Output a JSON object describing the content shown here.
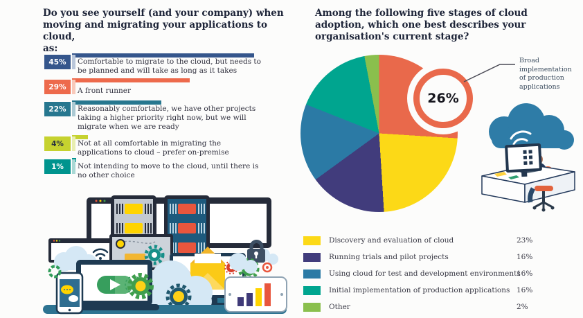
{
  "left": {
    "title_lines": [
      "Do you see yourself (and your company) when",
      "moving and migrating your applications to cloud,",
      "as:"
    ]
  },
  "right": {
    "title_lines": [
      "Among the following five stages of cloud",
      "adoption, which one best describes your",
      "organisation's current stage?"
    ],
    "badge_label": "26%",
    "callout_lines": [
      "Broad",
      "implementation",
      "of production",
      "applications"
    ]
  },
  "chart_data": [
    {
      "type": "bar",
      "orientation": "horizontal",
      "title": "Do you see yourself (and your company) when moving and migrating your applications to cloud, as:",
      "categories": [
        "Comfortable to migrate to the cloud, but needs to be planned and will take as long as it takes",
        "A front runner",
        "Reasonably comfortable, we have other projects taking a higher priority right now, but we will migrate when we are ready",
        "Not at all comfortable in migrating the applications to cloud – prefer on-premise",
        "Not intending to move to the cloud, until there is no other choice"
      ],
      "values": [
        45,
        29,
        22,
        4,
        1
      ],
      "value_labels": [
        "45%",
        "29%",
        "22%",
        "4%",
        "1%"
      ],
      "colors": [
        "#35568c",
        "#ed6a4c",
        "#27778f",
        "#c6d22f",
        "#00948e"
      ],
      "tint_colors": [
        "#b9c6da",
        "#f8c9ba",
        "#abc9d3",
        "#e8eeb0",
        "#a9d8d4"
      ],
      "value_text_colors": [
        "#ffffff",
        "#ffffff",
        "#ffffff",
        "#293241",
        "#ffffff"
      ],
      "xlim": [
        0,
        45
      ]
    },
    {
      "type": "pie",
      "title": "Among the following five stages of cloud adoption, which one best describes your organisation's current stage?",
      "start_angle_deg": 0,
      "direction": "clockwise",
      "segments": [
        {
          "label": "Broad implementation of production applications",
          "value": 26,
          "pct_label": "26%",
          "color": "#e9694b",
          "in_legend": false
        },
        {
          "label": "Discovery and evaluation of cloud",
          "value": 23,
          "pct_label": "23%",
          "color": "#fcd917",
          "in_legend": true
        },
        {
          "label": "Running trials and pilot projects",
          "value": 16,
          "pct_label": "16%",
          "color": "#413c7c",
          "in_legend": true
        },
        {
          "label": "Using cloud for test and development environments",
          "value": 16,
          "pct_label": "16%",
          "color": "#2b7aa5",
          "in_legend": true
        },
        {
          "label": "Initial implementation of production applications",
          "value": 16,
          "pct_label": "16%",
          "color": "#00a58f",
          "in_legend": true
        },
        {
          "label": "Other",
          "value": 2,
          "pct_label": "2%",
          "color": "#8abf4d",
          "in_legend": true
        }
      ],
      "highlight": {
        "segment": "Broad implementation of production applications",
        "badge": "26%"
      },
      "legend_position": "bottom-right"
    }
  ]
}
